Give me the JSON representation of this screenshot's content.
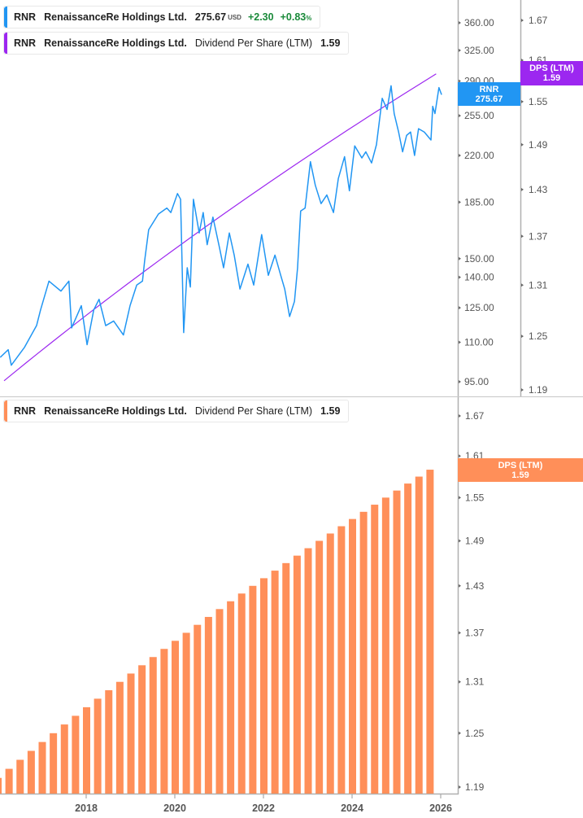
{
  "legends": {
    "price": {
      "ticker": "RNR",
      "name": "RenaissanceRe Holdings Ltd.",
      "price": "275.67",
      "currency": "USD",
      "change": "+2.30",
      "change_pct": "+0.83",
      "pct_sign": "%"
    },
    "dps_top": {
      "ticker": "RNR",
      "name": "RenaissanceRe Holdings Ltd.",
      "metric": "Dividend Per Share (LTM)",
      "value": "1.59"
    },
    "dps_bottom": {
      "ticker": "RNR",
      "name": "RenaissanceRe Holdings Ltd.",
      "metric": "Dividend Per Share (LTM)",
      "value": "1.59"
    }
  },
  "tags": {
    "price": {
      "label": "RNR",
      "value": "275.67"
    },
    "dps_top": {
      "label": "DPS (LTM)",
      "value": "1.59"
    },
    "dps_bottom": {
      "label": "DPS (LTM)",
      "value": "1.59"
    }
  },
  "colors": {
    "price": "#2196F3",
    "dps_line": "#9C27F0",
    "bars": "#FF8F59",
    "positive": "#1a8a3a"
  },
  "chart_data": [
    {
      "type": "line",
      "pane": "top",
      "series": [
        {
          "name": "RNR",
          "x": [
            2016.06,
            2016.24,
            2016.31,
            2016.61,
            2016.88,
            2016.97,
            2017.16,
            2017.43,
            2017.61,
            2017.67,
            2017.89,
            2018.02,
            2018.17,
            2018.29,
            2018.44,
            2018.62,
            2018.84,
            2018.99,
            2019.14,
            2019.27,
            2019.32,
            2019.41,
            2019.63,
            2019.82,
            2019.91,
            2020.06,
            2020.13,
            2020.2,
            2020.28,
            2020.35,
            2020.42,
            2020.55,
            2020.64,
            2020.73,
            2020.86,
            2021.01,
            2021.1,
            2021.23,
            2021.34,
            2021.47,
            2021.65,
            2021.78,
            2021.96,
            2022.11,
            2022.26,
            2022.39,
            2022.48,
            2022.59,
            2022.7,
            2022.77,
            2022.84,
            2022.94,
            2023.06,
            2023.17,
            2023.3,
            2023.43,
            2023.58,
            2023.69,
            2023.83,
            2023.94,
            2024.06,
            2024.22,
            2024.31,
            2024.44,
            2024.55,
            2024.68,
            2024.79,
            2024.88,
            2024.95,
            2025.05,
            2025.14,
            2025.23,
            2025.32,
            2025.41,
            2025.5,
            2025.63,
            2025.78,
            2025.82,
            2025.87,
            2025.96,
            2026.02
          ],
          "y": [
            104,
            107,
            101,
            108,
            117,
            124,
            138,
            133,
            138,
            116,
            126,
            109,
            124,
            129,
            117,
            119,
            113,
            126,
            136,
            138,
            149,
            167,
            177,
            181,
            178,
            191,
            187,
            114,
            145,
            135,
            187,
            165,
            178,
            158,
            175,
            156,
            145,
            165,
            152,
            134,
            147,
            136,
            164,
            141,
            152,
            141,
            134,
            121,
            128,
            145,
            179,
            181,
            215,
            197,
            184,
            190,
            178,
            202,
            219,
            193,
            228,
            218,
            223,
            214,
            229,
            272,
            261,
            285,
            257,
            240,
            223,
            237,
            240,
            220,
            243,
            240,
            233,
            264,
            257,
            283,
            275.67
          ]
        }
      ],
      "yscale": "log",
      "yticks": [
        "360.00",
        "325.00",
        "290.00",
        "255.00",
        "220.00",
        "185.00",
        "150.00",
        "140.00",
        "125.00",
        "110.00",
        "95.00"
      ],
      "secondary_yticks": [
        "1.67",
        "1.61",
        "1.55",
        "1.49",
        "1.43",
        "1.37",
        "1.31",
        "1.25",
        "1.19"
      ],
      "secondary_series": "Dividend Per Share (LTM)"
    },
    {
      "type": "bar",
      "pane": "bottom",
      "series": [
        {
          "name": "Dividend Per Share (LTM)",
          "x": [
            2016.0,
            2016.25,
            2016.5,
            2016.75,
            2017.0,
            2017.25,
            2017.5,
            2017.75,
            2018.0,
            2018.25,
            2018.5,
            2018.75,
            2019.0,
            2019.25,
            2019.5,
            2019.75,
            2020.0,
            2020.25,
            2020.5,
            2020.75,
            2021.0,
            2021.25,
            2021.5,
            2021.75,
            2022.0,
            2022.25,
            2022.5,
            2022.75,
            2023.0,
            2023.25,
            2023.5,
            2023.75,
            2024.0,
            2024.25,
            2024.5,
            2024.75,
            2025.0,
            2025.25,
            2025.5,
            2025.75
          ],
          "values": [
            1.2,
            1.21,
            1.22,
            1.23,
            1.24,
            1.25,
            1.26,
            1.27,
            1.28,
            1.29,
            1.3,
            1.31,
            1.32,
            1.33,
            1.34,
            1.35,
            1.36,
            1.37,
            1.38,
            1.39,
            1.4,
            1.41,
            1.42,
            1.43,
            1.44,
            1.45,
            1.46,
            1.47,
            1.48,
            1.49,
            1.5,
            1.51,
            1.52,
            1.53,
            1.54,
            1.55,
            1.56,
            1.57,
            1.58,
            1.59
          ]
        }
      ],
      "yscale": "log",
      "yticks": [
        "1.67",
        "1.61",
        "1.55",
        "1.49",
        "1.43",
        "1.37",
        "1.31",
        "1.25",
        "1.19"
      ],
      "xticks": [
        "2018",
        "2020",
        "2022",
        "2024",
        "2026"
      ]
    }
  ]
}
